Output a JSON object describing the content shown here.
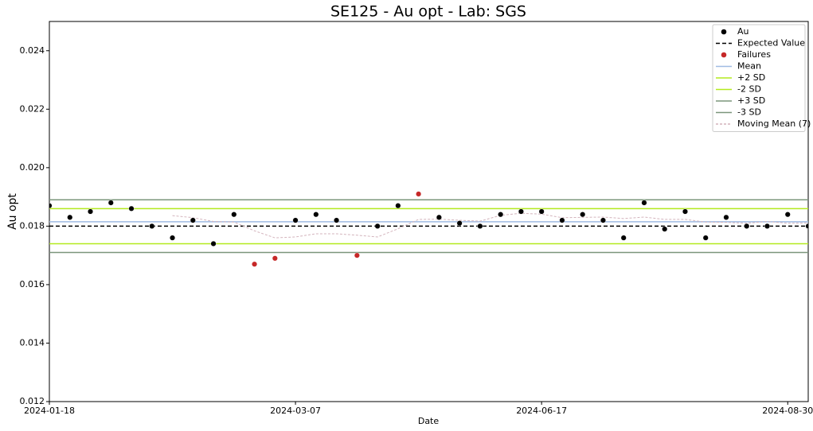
{
  "chart_data": {
    "type": "control",
    "title": "SE125 - Au opt - Lab: SGS",
    "x_label": "Date",
    "y_label": "Au opt",
    "categories": [
      "2024-01-18",
      null,
      null,
      null,
      null,
      null,
      null,
      null,
      null,
      null,
      null,
      null,
      "2024-03-07",
      null,
      null,
      null,
      null,
      null,
      null,
      null,
      null,
      null,
      null,
      null,
      "2024-06-17",
      null,
      null,
      null,
      null,
      null,
      null,
      null,
      null,
      null,
      null,
      null,
      "2024-08-30",
      null
    ],
    "ylim": [
      0.012,
      0.025
    ],
    "yticks": [
      0.012,
      0.014,
      0.016,
      0.018,
      {
        "value": 0.02,
        "label": "0.020"
      },
      0.022,
      0.024
    ],
    "legend": "upper right",
    "series": [
      {
        "name": "Au",
        "kind": "points",
        "color": "#000000",
        "values": [
          0.0187,
          0.0183,
          0.0185,
          0.0188,
          0.0186,
          0.018,
          0.0176,
          0.0182,
          0.0174,
          0.0184,
          null,
          null,
          0.0182,
          0.0184,
          0.0182,
          null,
          0.018,
          0.0187,
          null,
          0.0183,
          0.0181,
          0.018,
          0.0184,
          0.0185,
          0.0185,
          0.0182,
          0.0184,
          0.0182,
          0.0176,
          0.0188,
          0.0179,
          0.0185,
          0.0176,
          0.0183,
          0.018,
          0.018,
          0.0184,
          0.018
        ]
      },
      {
        "name": "Expected Value",
        "kind": "hline",
        "color": "#000000",
        "dash": "5,3",
        "value": 0.018
      },
      {
        "name": "Failures",
        "kind": "points",
        "color": "#c62828",
        "values": [
          null,
          null,
          null,
          null,
          null,
          null,
          null,
          null,
          null,
          null,
          0.0167,
          0.0169,
          null,
          null,
          null,
          0.017,
          null,
          null,
          0.0191,
          null,
          null,
          null,
          null,
          null,
          null,
          null,
          null,
          null,
          null,
          null,
          null,
          null,
          null,
          null,
          null,
          null,
          null,
          null
        ]
      },
      {
        "name": "Mean",
        "kind": "hline",
        "color": "#9fbbe3",
        "value": 0.01815
      },
      {
        "name": "+2 SD",
        "kind": "hline",
        "color": "#b3ea1e",
        "value": 0.0186
      },
      {
        "name": "-2 SD",
        "kind": "hline",
        "color": "#b3ea1e",
        "value": 0.0174
      },
      {
        "name": "+3 SD",
        "kind": "hline",
        "color": "#7b967b",
        "value": 0.0189
      },
      {
        "name": "-3 SD",
        "kind": "hline",
        "color": "#7b967b",
        "value": 0.0171
      },
      {
        "name": "Moving Mean (7)",
        "kind": "line",
        "color": "#d3b3bc",
        "dash": "3,2",
        "values": [
          null,
          null,
          null,
          null,
          null,
          null,
          0.01836,
          0.01829,
          0.01816,
          0.01814,
          0.01784,
          0.0176,
          0.01763,
          0.01774,
          0.01774,
          0.01769,
          0.01763,
          0.01791,
          0.01823,
          0.01824,
          0.0182,
          0.01817,
          0.01837,
          0.01844,
          0.01841,
          0.01829,
          0.0183,
          0.01831,
          0.01826,
          0.01831,
          0.01823,
          0.01823,
          0.01814,
          0.01813,
          0.0181,
          0.01816,
          0.0181,
          0.01811
        ]
      }
    ]
  }
}
